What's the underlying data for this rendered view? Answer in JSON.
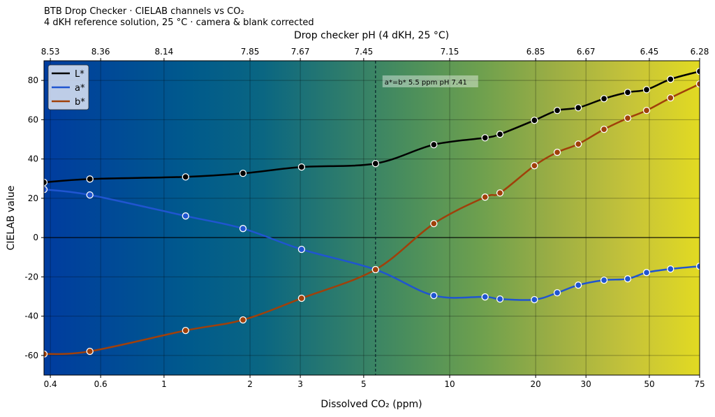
{
  "chart_data": {
    "type": "line",
    "title": "BTB Drop Checker  ·  CIELAB channels vs CO₂",
    "subtitle": "4 dKH reference solution, 25 °C  ·  camera & blank corrected",
    "xlabel": "Dissolved CO₂  (ppm)",
    "ylabel": "CIELAB value",
    "top_xlabel": "Drop checker pH  (4 dKH, 25 °C)",
    "xscale": "log",
    "xlim": [
      0.38,
      75
    ],
    "ylim": [
      -70,
      90
    ],
    "grid": true,
    "legend_position": "top-left",
    "x_ticks": [
      0.4,
      0.6,
      1,
      2,
      3,
      5,
      10,
      20,
      30,
      50,
      75
    ],
    "x_tick_labels": [
      "0.4",
      "0.6",
      "1",
      "2",
      "3",
      "5",
      "10",
      "20",
      "30",
      "50",
      "75"
    ],
    "y_ticks": [
      -60,
      -40,
      -20,
      0,
      20,
      40,
      60,
      80
    ],
    "y_tick_labels": [
      "-60",
      "-40",
      "-20",
      "0",
      "20",
      "40",
      "60",
      "80"
    ],
    "top_ticks_co2": [
      0.4,
      0.6,
      1,
      2,
      3,
      5,
      10,
      20,
      30,
      50,
      75
    ],
    "top_tick_labels": [
      "8.53",
      "8.36",
      "8.14",
      "7.85",
      "7.67",
      "7.45",
      "7.15",
      "6.85",
      "6.67",
      "6.45",
      "6.28"
    ],
    "x": [
      0.38,
      0.55,
      1.19,
      1.89,
      3.03,
      5.5,
      8.8,
      13.3,
      15.0,
      19.8,
      23.8,
      28.2,
      34.7,
      42.0,
      48.9,
      59.3,
      75
    ],
    "series": [
      {
        "name": "L*",
        "color": "#000000",
        "values": [
          28.1,
          29.8,
          30.9,
          32.7,
          35.9,
          37.7,
          47.3,
          50.8,
          52.6,
          59.7,
          64.7,
          66.1,
          70.7,
          73.9,
          75.3,
          80.6,
          84.6
        ]
      },
      {
        "name": "a*",
        "color": "#2055d0",
        "values": [
          24.5,
          21.7,
          11.0,
          4.6,
          -6.0,
          -16.3,
          -29.5,
          -30.2,
          -31.3,
          -31.6,
          -28.1,
          -24.2,
          -21.7,
          -21.0,
          -17.8,
          -16.0,
          -14.6
        ]
      },
      {
        "name": "b*",
        "color": "#a0400a",
        "values": [
          -59.3,
          -57.9,
          -47.3,
          -41.9,
          -30.9,
          -16.3,
          7.1,
          20.6,
          22.7,
          36.6,
          43.4,
          47.6,
          55.1,
          60.8,
          64.7,
          71.1,
          78.2
        ]
      }
    ],
    "annotation": {
      "x": 5.5,
      "text": "a*=b*   5.5 ppm   pH 7.41"
    },
    "background_colors": [
      "#003c9f",
      "#004b96",
      "#005a8c",
      "#0a6682",
      "#2a7a6e",
      "#4a8e5c",
      "#6ea04e",
      "#9cae44",
      "#c4c23a",
      "#e2da22"
    ]
  }
}
